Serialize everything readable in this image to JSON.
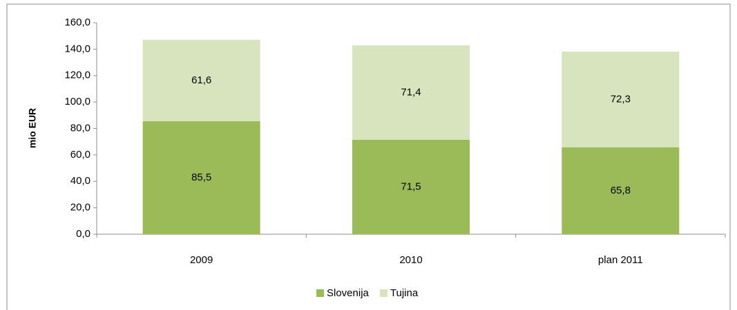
{
  "chart_data": {
    "type": "stacked_bar",
    "y_label": "mio EUR",
    "categories": [
      "2009",
      "2010",
      "plan 2011"
    ],
    "series": [
      {
        "name": "Slovenija",
        "color": "#9bbb59",
        "values": [
          85.5,
          71.5,
          65.8
        ],
        "value_labels": [
          "85,5",
          "71,5",
          "65,8"
        ]
      },
      {
        "name": "Tujina",
        "color": "#d7e4bd",
        "values": [
          61.6,
          71.4,
          72.3
        ],
        "value_labels": [
          "61,6",
          "71,4",
          "72,3"
        ]
      }
    ],
    "ylim": [
      0,
      160
    ],
    "yticks": [
      {
        "value": 0,
        "label": "0,0"
      },
      {
        "value": 20,
        "label": "20,0"
      },
      {
        "value": 40,
        "label": "40,0"
      },
      {
        "value": 60,
        "label": "60,0"
      },
      {
        "value": 80,
        "label": "80,0"
      },
      {
        "value": 100,
        "label": "100,0"
      },
      {
        "value": 120,
        "label": "120,0"
      },
      {
        "value": 140,
        "label": "140,0"
      },
      {
        "value": 160,
        "label": "160,0"
      }
    ],
    "legend": "bottom"
  }
}
